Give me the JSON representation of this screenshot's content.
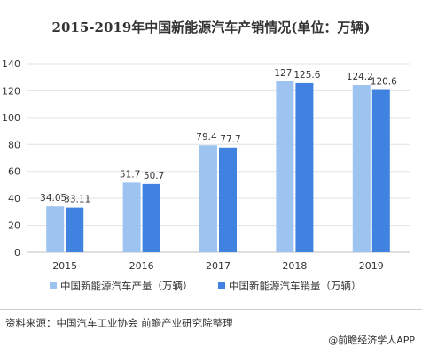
{
  "chart_data": {
    "type": "bar",
    "title": "2015-2019年中国新能源汽车产销情况(单位：万辆)",
    "categories": [
      "2015",
      "2016",
      "2017",
      "2018",
      "2019"
    ],
    "series": [
      {
        "name": "中国新能源汽车产量（万辆）",
        "values": [
          34.05,
          51.7,
          79.4,
          127,
          124.2
        ],
        "color": "#9dc3f1"
      },
      {
        "name": "中国新能源汽车销量（万辆）",
        "values": [
          33.11,
          50.7,
          77.7,
          125.6,
          120.6
        ],
        "color": "#3f82e0"
      }
    ],
    "value_labels": [
      [
        "34.05",
        "51.7",
        "79.4",
        "127",
        "124.2"
      ],
      [
        "33.11",
        "50.7",
        "77.7",
        "125.6",
        "120.6"
      ]
    ],
    "yticks": [
      "0",
      "20",
      "40",
      "60",
      "80",
      "100",
      "120",
      "140"
    ],
    "ylim": [
      0,
      140
    ],
    "grid": true,
    "legend_position": "bottom"
  },
  "footer": {
    "source": "资料来源：中国汽车工业协会 前瞻产业研究院整理",
    "brand": "@前瞻经济学人APP"
  }
}
